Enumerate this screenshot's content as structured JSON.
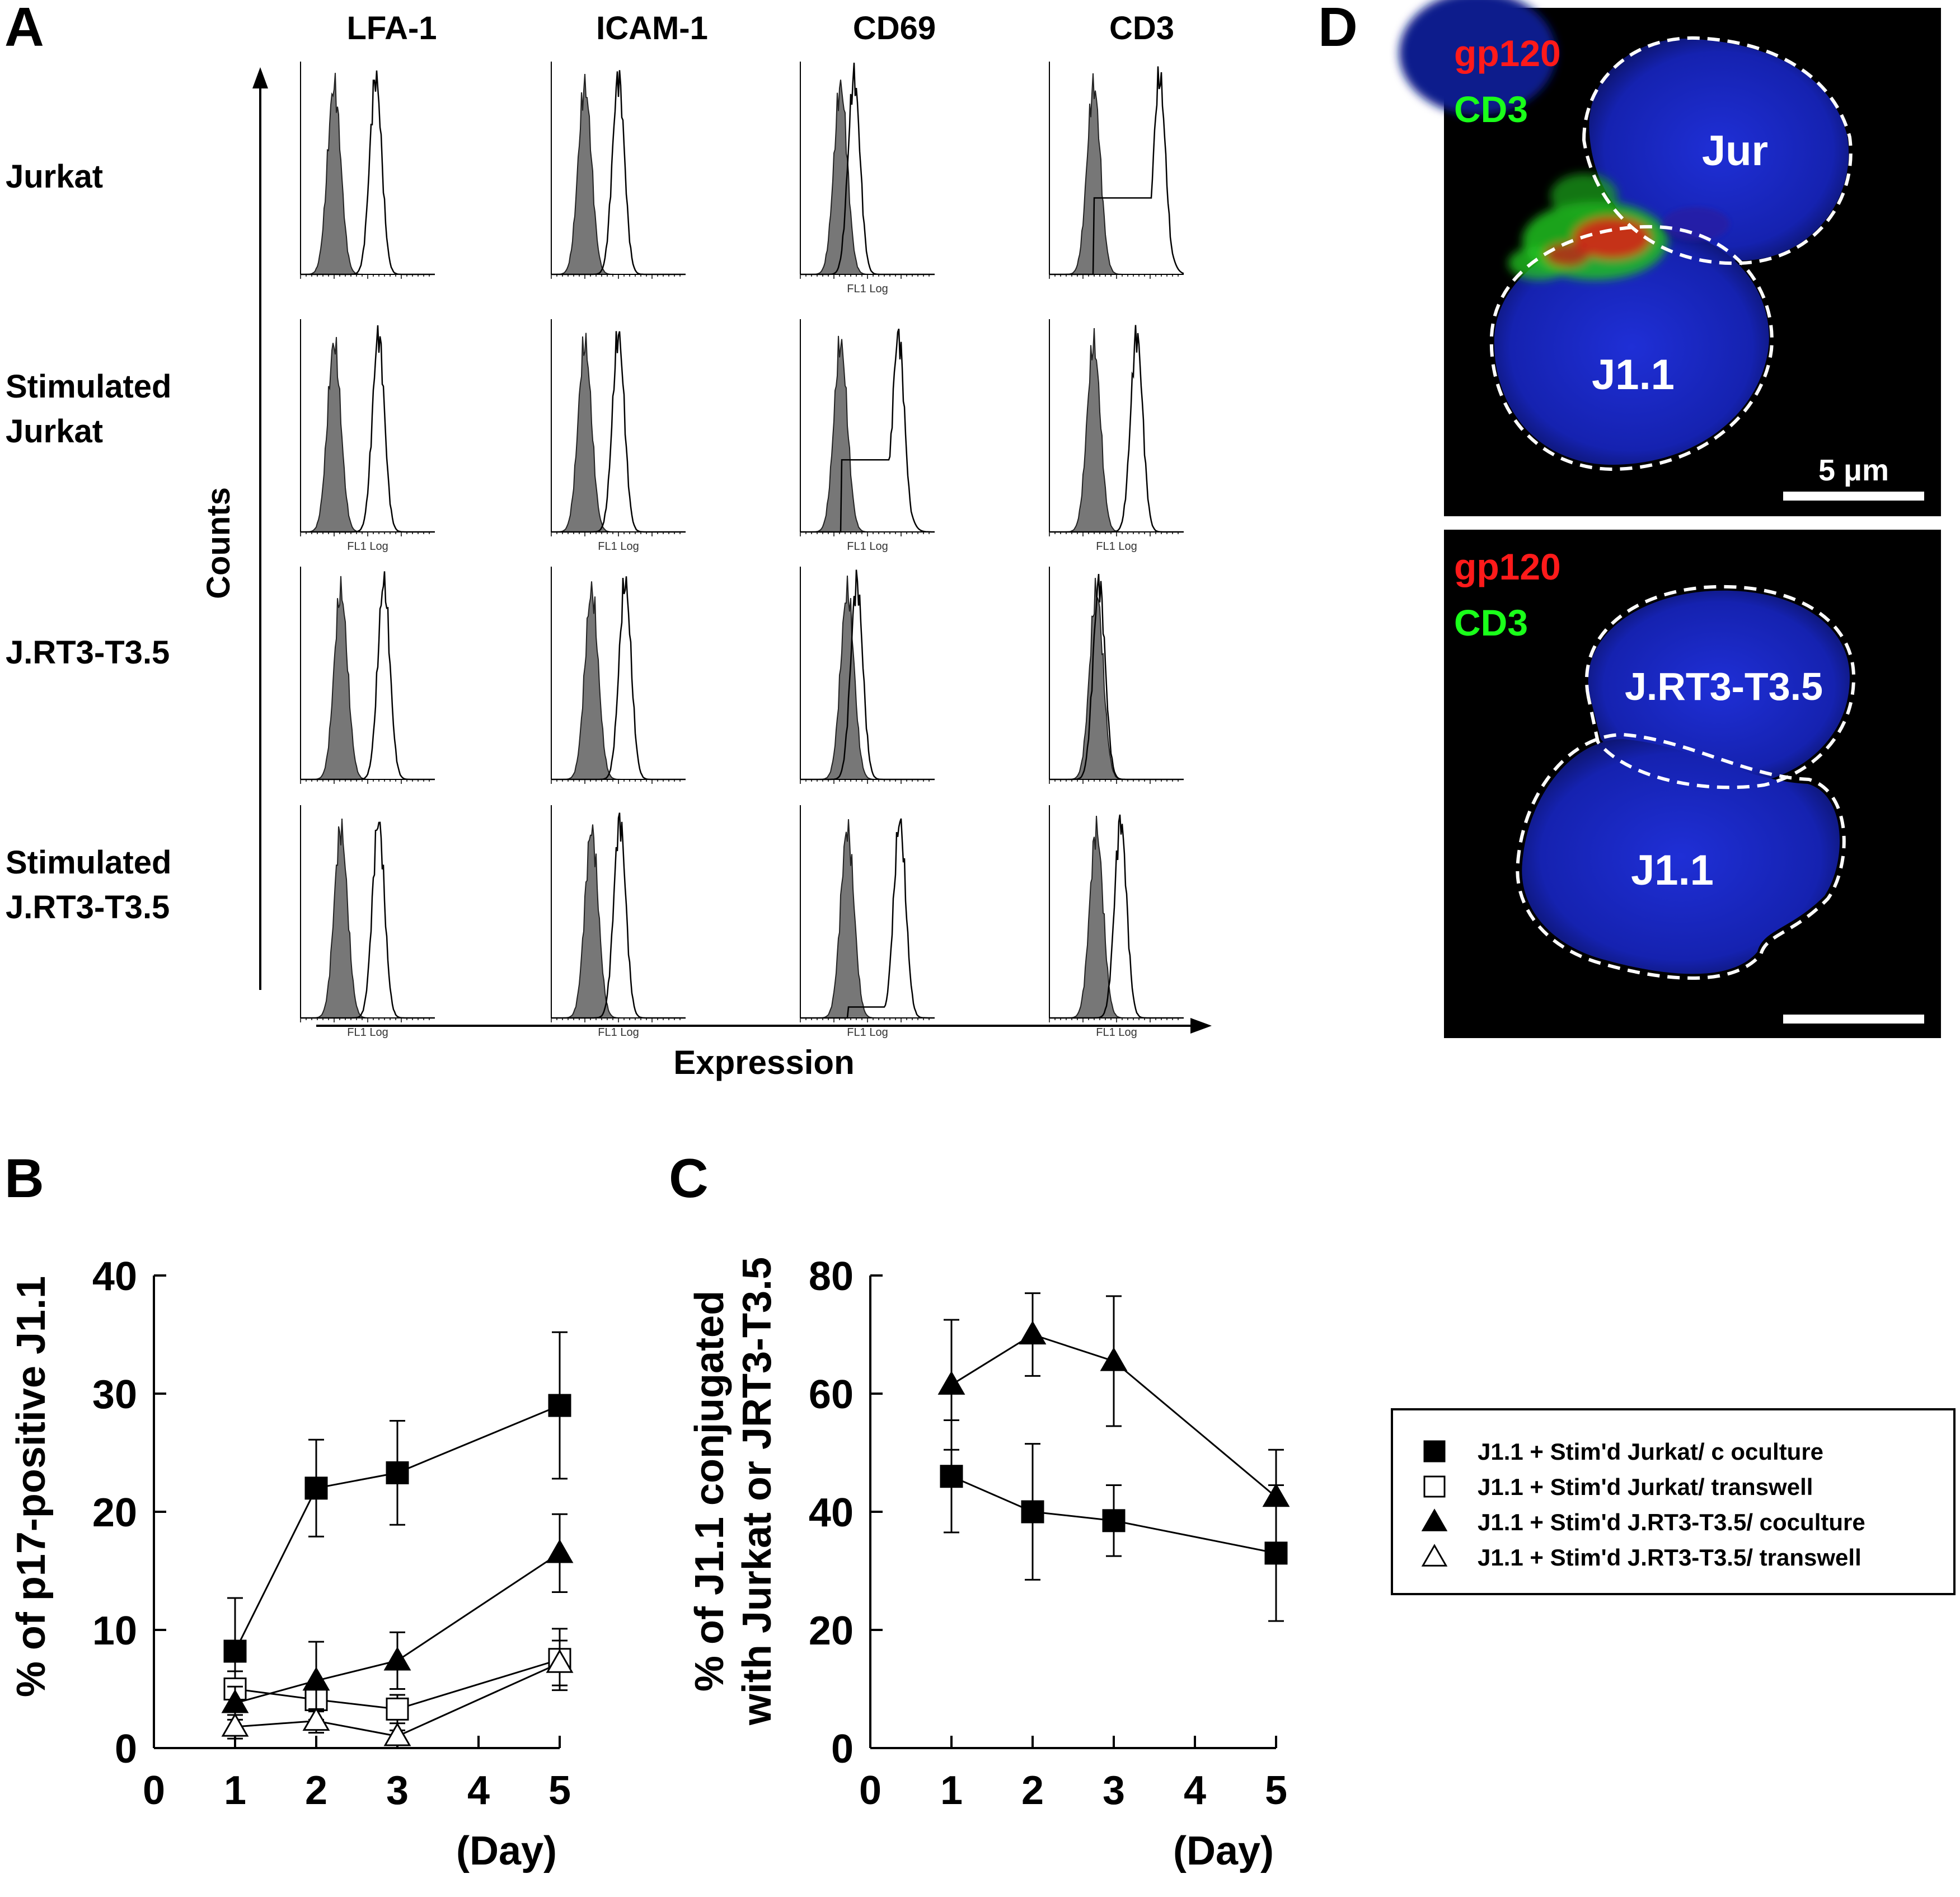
{
  "panels": {
    "A": {
      "letter": "A",
      "columns": [
        "LFA-1",
        "ICAM-1",
        "CD69",
        "CD3"
      ],
      "rows": [
        [
          "Jurkat"
        ],
        [
          "Stimulated",
          "Jurkat"
        ],
        [
          "J.RT3-T3.5"
        ],
        [
          "Stimulated",
          "J.RT3-T3.5"
        ]
      ],
      "ylabel": "Counts",
      "xlabel": "Expression",
      "axis_caption": "FL1 Log",
      "histograms": [
        [
          {
            "ctrl": 0.25,
            "stain": 0.56,
            "shoulder": 0,
            "caption": false
          },
          {
            "ctrl": 0.25,
            "stain": 0.5,
            "shoulder": 0,
            "caption": false
          },
          {
            "ctrl": 0.3,
            "stain": 0.4,
            "shoulder": 0,
            "caption": true
          },
          {
            "ctrl": 0.33,
            "stain": 0.82,
            "shoulder": 0.35,
            "caption": false
          }
        ],
        [
          {
            "ctrl": 0.25,
            "stain": 0.58,
            "shoulder": 0,
            "caption": true
          },
          {
            "ctrl": 0.25,
            "stain": 0.5,
            "shoulder": 0,
            "caption": true
          },
          {
            "ctrl": 0.3,
            "stain": 0.73,
            "shoulder": 0.33,
            "caption": true
          },
          {
            "ctrl": 0.33,
            "stain": 0.65,
            "shoulder": 0,
            "caption": true
          }
        ],
        [
          {
            "ctrl": 0.3,
            "stain": 0.62,
            "shoulder": 0,
            "caption": false
          },
          {
            "ctrl": 0.3,
            "stain": 0.55,
            "shoulder": 0,
            "caption": false
          },
          {
            "ctrl": 0.35,
            "stain": 0.42,
            "shoulder": 0,
            "caption": false
          },
          {
            "ctrl": 0.35,
            "stain": 0.37,
            "shoulder": 0,
            "caption": false
          }
        ],
        [
          {
            "ctrl": 0.3,
            "stain": 0.58,
            "shoulder": 0,
            "caption": true
          },
          {
            "ctrl": 0.3,
            "stain": 0.51,
            "shoulder": 0,
            "caption": true
          },
          {
            "ctrl": 0.35,
            "stain": 0.74,
            "shoulder": 0.05,
            "caption": true
          },
          {
            "ctrl": 0.35,
            "stain": 0.53,
            "shoulder": 0,
            "caption": true
          }
        ]
      ]
    },
    "B": {
      "letter": "B"
    },
    "C": {
      "letter": "C"
    },
    "D": {
      "letter": "D",
      "top": {
        "label_red": "gp120",
        "label_green": "CD3",
        "cell_upper": "Jur",
        "cell_lower": "J1.1",
        "scalebar": "5 μm"
      },
      "bottom": {
        "label_red": "gp120",
        "label_green": "CD3",
        "cell_upper": "J.RT3-T3.5",
        "cell_lower": "J1.1"
      }
    }
  },
  "legend": [
    {
      "marker": "filled-square",
      "label": "J1.1 + Stim'd Jurkat/  c oculture"
    },
    {
      "marker": "open-square",
      "label": "J1.1 + Stim'd Jurkat/  transwell"
    },
    {
      "marker": "filled-triangle",
      "label": "J1.1 + Stim'd J.RT3-T3.5/  coculture"
    },
    {
      "marker": "open-triangle",
      "label": "J1.1 + Stim'd J.RT3-T3.5/  transwell"
    }
  ],
  "chart_data": [
    {
      "panel": "B",
      "type": "line",
      "ylabel": "% of p17-positive J1.1",
      "xlabel": "(Day)",
      "xlim": [
        0,
        5
      ],
      "ylim": [
        0,
        40
      ],
      "xticks": [
        0,
        1,
        2,
        3,
        4,
        5
      ],
      "yticks": [
        0,
        10,
        20,
        30,
        40
      ],
      "series": [
        {
          "name": "J1.1 + Stim'd Jurkat/ coculture",
          "marker": "filled-square",
          "x": [
            1,
            2,
            3,
            5
          ],
          "y": [
            8.2,
            22.0,
            23.3,
            29.0
          ],
          "err": [
            4.5,
            4.1,
            4.4,
            6.2
          ]
        },
        {
          "name": "J1.1 + Stim'd Jurkat/ transwell",
          "marker": "open-square",
          "x": [
            1,
            2,
            3,
            5
          ],
          "y": [
            5.0,
            4.1,
            3.3,
            7.5
          ],
          "err": [
            1.5,
            1.0,
            1.2,
            2.6
          ]
        },
        {
          "name": "J1.1 + Stim'd J.RT3-T3.5/ coculture",
          "marker": "filled-triangle",
          "x": [
            1,
            2,
            3,
            5
          ],
          "y": [
            3.8,
            5.7,
            7.4,
            16.5
          ],
          "err": [
            1.4,
            3.3,
            2.4,
            3.3
          ]
        },
        {
          "name": "J1.1 + Stim'd J.RT3-T3.5/ transwell",
          "marker": "open-triangle",
          "x": [
            1,
            2,
            3,
            5
          ],
          "y": [
            1.8,
            2.3,
            1.0,
            7.2
          ],
          "err": [
            1.0,
            1.0,
            0.5,
            1.9
          ]
        }
      ]
    },
    {
      "panel": "C",
      "type": "line",
      "ylabel": [
        "% of J1.1 conjugated",
        "with Jurkat or JRT3-T3.5"
      ],
      "xlabel": "(Day)",
      "xlim": [
        0,
        5
      ],
      "ylim": [
        0,
        80
      ],
      "xticks": [
        0,
        1,
        2,
        3,
        4,
        5
      ],
      "yticks": [
        0,
        20,
        40,
        60,
        80
      ],
      "series": [
        {
          "name": "J1.1 + Stim'd Jurkat/ coculture",
          "marker": "filled-square",
          "x": [
            1,
            2,
            3,
            5
          ],
          "y": [
            46,
            40,
            38.5,
            33
          ],
          "err": [
            9.5,
            11.5,
            6,
            11.5
          ]
        },
        {
          "name": "J1.1 + Stim'd J.RT3-T3.5/ coculture",
          "marker": "filled-triangle",
          "x": [
            1,
            2,
            3,
            5
          ],
          "y": [
            61.5,
            70,
            65.5,
            42.5
          ],
          "err": [
            11,
            7,
            11,
            8
          ]
        }
      ]
    }
  ]
}
